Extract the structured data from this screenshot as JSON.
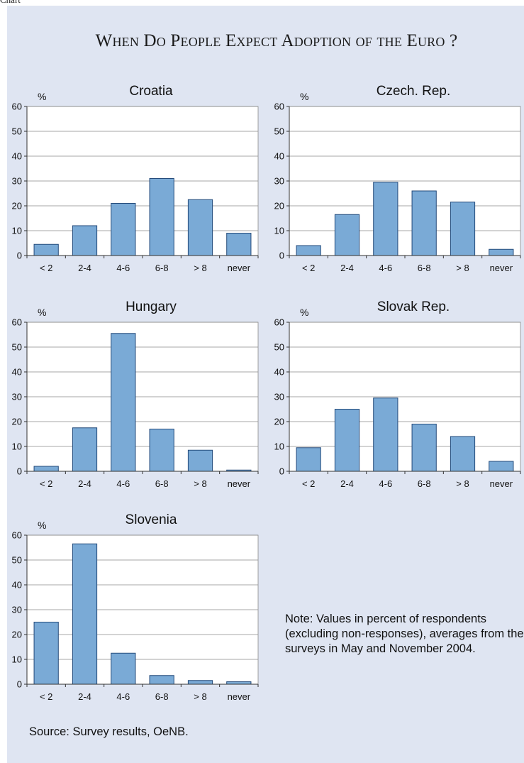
{
  "figure_label": "Chart",
  "title": "When Do People Expect Adoption of the Euro ?",
  "note": "Note: Values in percent of respondents (excluding non-responses), averages from the surveys in May and November 2004.",
  "source": "Source: Survey results, OeNB.",
  "colors": {
    "bar_fill": "#7aaad6",
    "bar_stroke": "#234a7a",
    "panel_bg": "#dfe5f2"
  },
  "chart_data": [
    {
      "type": "bar",
      "title": "Croatia",
      "ylabel": "%",
      "xlabel": "",
      "categories": [
        "< 2",
        "2-4",
        "4-6",
        "6-8",
        "> 8",
        "never"
      ],
      "values": [
        4.5,
        12,
        21,
        31,
        22.5,
        9
      ],
      "ylim": [
        0,
        60
      ],
      "yticks": [
        0,
        10,
        20,
        30,
        40,
        50,
        60
      ],
      "grid": true,
      "legend": "none"
    },
    {
      "type": "bar",
      "title": "Czech. Rep.",
      "ylabel": "%",
      "xlabel": "",
      "categories": [
        "< 2",
        "2-4",
        "4-6",
        "6-8",
        "> 8",
        "never"
      ],
      "values": [
        4,
        16.5,
        29.5,
        26,
        21.5,
        2.5
      ],
      "ylim": [
        0,
        60
      ],
      "yticks": [
        0,
        10,
        20,
        30,
        40,
        50,
        60
      ],
      "grid": true,
      "legend": "none"
    },
    {
      "type": "bar",
      "title": "Hungary",
      "ylabel": "%",
      "xlabel": "",
      "categories": [
        "< 2",
        "2-4",
        "4-6",
        "6-8",
        "> 8",
        "never"
      ],
      "values": [
        2,
        17.5,
        55.5,
        17,
        8.5,
        0.5
      ],
      "ylim": [
        0,
        60
      ],
      "yticks": [
        0,
        10,
        20,
        30,
        40,
        50,
        60
      ],
      "grid": true,
      "legend": "none"
    },
    {
      "type": "bar",
      "title": "Slovak Rep.",
      "ylabel": "%",
      "xlabel": "",
      "categories": [
        "< 2",
        "2-4",
        "4-6",
        "6-8",
        "> 8",
        "never"
      ],
      "values": [
        9.5,
        25,
        29.5,
        19,
        14,
        4
      ],
      "ylim": [
        0,
        60
      ],
      "yticks": [
        0,
        10,
        20,
        30,
        40,
        50,
        60
      ],
      "grid": true,
      "legend": "none"
    },
    {
      "type": "bar",
      "title": "Slovenia",
      "ylabel": "%",
      "xlabel": "",
      "categories": [
        "< 2",
        "2-4",
        "4-6",
        "6-8",
        "> 8",
        "never"
      ],
      "values": [
        25,
        56.5,
        12.5,
        3.5,
        1.5,
        1
      ],
      "ylim": [
        0,
        60
      ],
      "yticks": [
        0,
        10,
        20,
        30,
        40,
        50,
        60
      ],
      "grid": true,
      "legend": "none"
    }
  ]
}
